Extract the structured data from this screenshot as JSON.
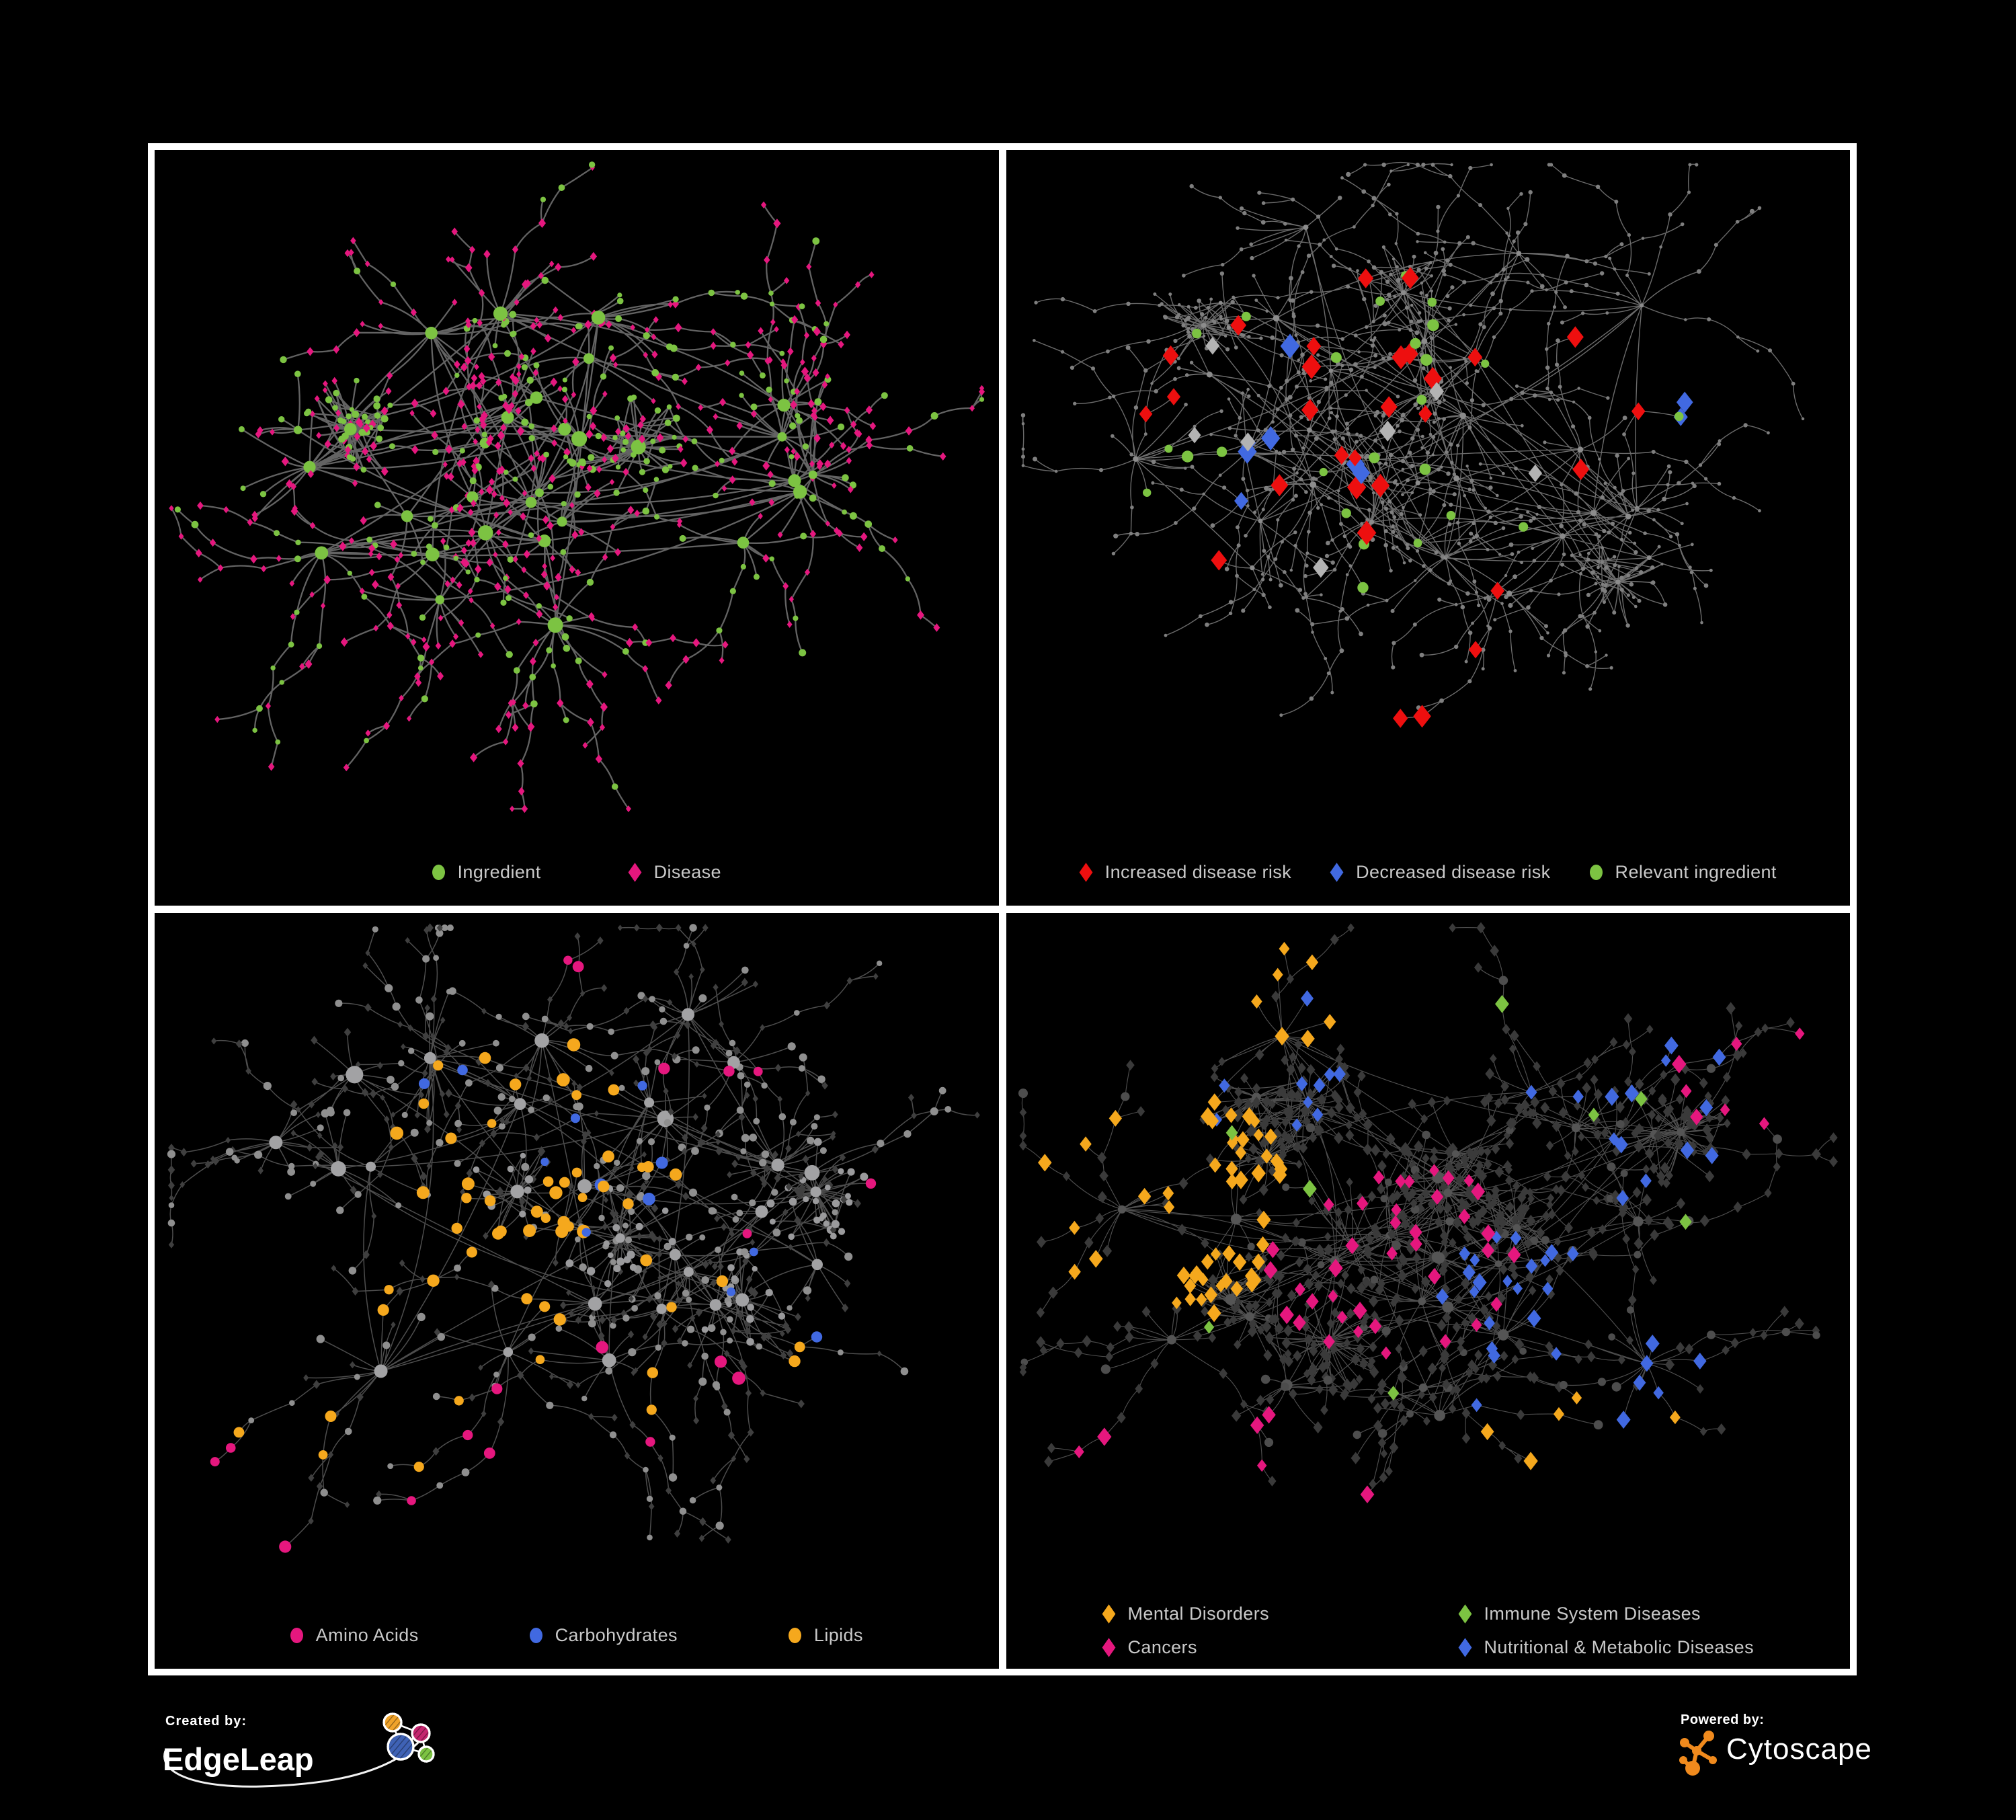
{
  "colors": {
    "background": "#000000",
    "frame": "#ffffff",
    "legend_text": "#c9c9c9",
    "green": "#7cc342",
    "magenta": "#e5177e",
    "red": "#ee0f0f",
    "blue": "#4169e1",
    "amber": "#f5a81d",
    "silver": "#b3b3b3",
    "edge_dark": "#6b6b6b",
    "edge_light": "#9a9a9a",
    "edgeleap_orange": "#f0a32a",
    "edgeleap_pink": "#c4256e",
    "edgeleap_blue": "#3f62b5",
    "edgeleap_green": "#7cc342",
    "cytoscape_orange": "#f08a1d",
    "white": "#ffffff"
  },
  "panels": [
    {
      "name": "ingredient-disease-network",
      "legend": [
        {
          "marker": "circle",
          "color": "green",
          "label": "Ingredient"
        },
        {
          "marker": "diamond",
          "color": "magenta",
          "label": "Disease"
        }
      ]
    },
    {
      "name": "disease-risk-network",
      "legend": [
        {
          "marker": "diamond",
          "color": "red",
          "label": "Increased disease risk"
        },
        {
          "marker": "diamond",
          "color": "blue",
          "label": "Decreased disease risk"
        },
        {
          "marker": "circle",
          "color": "green",
          "label": "Relevant ingredient"
        }
      ]
    },
    {
      "name": "nutrient-class-network",
      "legend": [
        {
          "marker": "circle",
          "color": "magenta",
          "label": "Amino Acids"
        },
        {
          "marker": "circle",
          "color": "blue",
          "label": "Carbohydrates"
        },
        {
          "marker": "circle",
          "color": "amber",
          "label": "Lipids"
        }
      ]
    },
    {
      "name": "disease-class-network",
      "legend": [
        {
          "marker": "diamond",
          "color": "amber",
          "label": "Mental Disorders"
        },
        {
          "marker": "diamond",
          "color": "green",
          "label": "Immune System Diseases"
        },
        {
          "marker": "diamond",
          "color": "magenta",
          "label": "Cancers"
        },
        {
          "marker": "diamond",
          "color": "blue",
          "label": "Nutritional & Metabolic Diseases"
        }
      ]
    }
  ],
  "footer": {
    "created_by": "Created by:",
    "edgeleap": "EdgeLeap",
    "powered_by": "Powered by:",
    "cytoscape": "Cytoscape"
  }
}
